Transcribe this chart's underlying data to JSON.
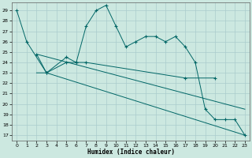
{
  "title": "",
  "xlabel": "Humidex (Indice chaleur)",
  "background_color": "#cce8e0",
  "grid_color": "#aacccc",
  "line_color": "#006666",
  "xlim": [
    -0.5,
    23.5
  ],
  "ylim": [
    16.5,
    29.8
  ],
  "yticks": [
    17,
    18,
    19,
    20,
    21,
    22,
    23,
    24,
    25,
    26,
    27,
    28,
    29
  ],
  "xticks": [
    0,
    1,
    2,
    3,
    4,
    5,
    6,
    7,
    8,
    9,
    10,
    11,
    12,
    13,
    14,
    15,
    16,
    17,
    18,
    19,
    20,
    21,
    22,
    23
  ],
  "series": [
    {
      "x": [
        0,
        1,
        3,
        5,
        6,
        7,
        8,
        9,
        10,
        11,
        12,
        13,
        14,
        15,
        16,
        17,
        18,
        19,
        20,
        21,
        22,
        23
      ],
      "y": [
        29,
        26,
        23,
        24.5,
        24,
        27.5,
        29,
        29.5,
        27.5,
        25.5,
        26,
        26.5,
        26.5,
        26,
        26.5,
        25.5,
        24,
        19.5,
        18.5,
        18.5,
        18.5,
        17
      ],
      "has_markers": true
    },
    {
      "x": [
        2,
        3,
        5,
        6,
        7,
        17,
        20
      ],
      "y": [
        24.8,
        23,
        24,
        24,
        24,
        22.5,
        22.5
      ],
      "has_markers": true
    },
    {
      "x": [
        2,
        3,
        23
      ],
      "y": [
        23,
        23,
        17
      ],
      "has_markers": false
    },
    {
      "x": [
        2,
        23
      ],
      "y": [
        24.8,
        19.5
      ],
      "has_markers": false
    }
  ]
}
